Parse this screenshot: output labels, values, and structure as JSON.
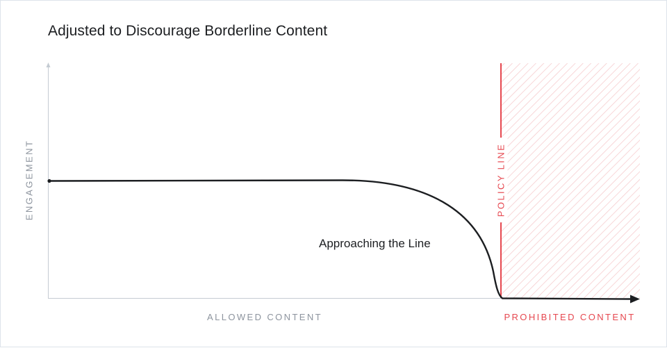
{
  "title": "Adjusted to Discourage Borderline Content",
  "y_axis_label": "ENGAGEMENT",
  "x_axis_sections": {
    "allowed": "ALLOWED CONTENT",
    "prohibited": "PROHIBITED CONTENT"
  },
  "policy_line_label": "POLICY LINE",
  "annotation": "Approaching the Line",
  "colors": {
    "text": "#1c1e21",
    "axis_text": "#8d949e",
    "policy_red": "#e6474f",
    "hatch": "#f6c9cb",
    "axis": "#c4cbd2"
  }
}
